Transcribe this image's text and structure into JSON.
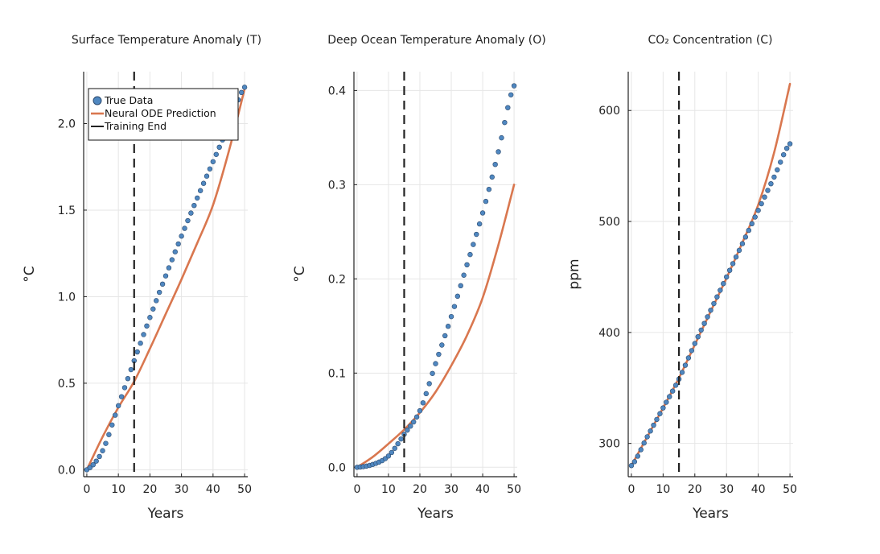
{
  "chart_data": [
    {
      "type": "line",
      "title": "Surface Temperature Anomaly (T)",
      "xlabel": "Years",
      "ylabel": "°C",
      "xlim": [
        -1,
        51
      ],
      "ylim": [
        -0.04,
        2.3
      ],
      "xticks": [
        0,
        10,
        20,
        30,
        40,
        50
      ],
      "yticks": [
        0.0,
        0.5,
        1.0,
        1.5,
        2.0
      ],
      "ytick_labels": [
        "0.0",
        "0.5",
        "1.0",
        "1.5",
        "2.0"
      ],
      "grid": true,
      "training_end": 15,
      "legend": {
        "placement": "top-left",
        "entries": [
          "True Data",
          "Neural ODE Prediction",
          "Training End"
        ]
      },
      "series": [
        {
          "name": "True Data",
          "kind": "scatter",
          "color": "#4f87c0",
          "x": [
            0,
            5,
            10,
            15,
            20,
            25,
            30,
            35,
            40,
            45,
            50
          ],
          "y": [
            0.0,
            0.11,
            0.37,
            0.63,
            0.88,
            1.12,
            1.35,
            1.57,
            1.78,
            1.99,
            2.21
          ]
        },
        {
          "name": "Neural ODE Prediction",
          "kind": "line",
          "color": "#d9774f",
          "x": [
            0,
            5,
            10,
            15,
            20,
            25,
            30,
            35,
            40,
            45,
            50
          ],
          "y": [
            0.0,
            0.19,
            0.36,
            0.51,
            0.7,
            0.9,
            1.1,
            1.31,
            1.53,
            1.84,
            2.2
          ]
        }
      ]
    },
    {
      "type": "line",
      "title": "Deep Ocean Temperature Anomaly (O)",
      "xlabel": "Years",
      "ylabel": "°C",
      "xlim": [
        -1,
        51
      ],
      "ylim": [
        -0.01,
        0.42
      ],
      "xticks": [
        0,
        10,
        20,
        30,
        40,
        50
      ],
      "yticks": [
        0.0,
        0.1,
        0.2,
        0.3,
        0.4
      ],
      "ytick_labels": [
        "0.0",
        "0.1",
        "0.2",
        "0.3",
        "0.4"
      ],
      "grid": true,
      "training_end": 15,
      "series": [
        {
          "name": "True Data",
          "kind": "scatter",
          "color": "#4f87c0",
          "x": [
            0,
            5,
            10,
            15,
            20,
            25,
            30,
            35,
            40,
            45,
            50
          ],
          "y": [
            0.0,
            0.003,
            0.012,
            0.035,
            0.06,
            0.11,
            0.16,
            0.215,
            0.27,
            0.335,
            0.405
          ]
        },
        {
          "name": "Neural ODE Prediction",
          "kind": "line",
          "color": "#d9774f",
          "x": [
            0,
            5,
            10,
            15,
            20,
            25,
            30,
            35,
            40,
            45,
            50
          ],
          "y": [
            0.0,
            0.011,
            0.025,
            0.04,
            0.058,
            0.08,
            0.108,
            0.14,
            0.18,
            0.236,
            0.3
          ]
        }
      ]
    },
    {
      "type": "line",
      "title": "CO₂ Concentration (C)",
      "xlabel": "Years",
      "ylabel": "ppm",
      "xlim": [
        -1,
        51
      ],
      "ylim": [
        270,
        635
      ],
      "xticks": [
        0,
        10,
        20,
        30,
        40,
        50
      ],
      "yticks": [
        300,
        400,
        500,
        600
      ],
      "ytick_labels": [
        "300",
        "400",
        "500",
        "600"
      ],
      "grid": true,
      "training_end": 15,
      "series": [
        {
          "name": "True Data",
          "kind": "scatter",
          "color": "#4f87c0",
          "x": [
            0,
            5,
            10,
            15,
            20,
            25,
            30,
            35,
            40,
            45,
            50
          ],
          "y": [
            280,
            306,
            332,
            358,
            390,
            420,
            450,
            480,
            510,
            540,
            570
          ]
        },
        {
          "name": "Neural ODE Prediction",
          "kind": "line",
          "color": "#d9774f",
          "x": [
            0,
            5,
            10,
            15,
            20,
            25,
            30,
            35,
            40,
            45,
            50
          ],
          "y": [
            280,
            306,
            332,
            359,
            389,
            419,
            449,
            481,
            515,
            562,
            624
          ]
        }
      ]
    }
  ]
}
